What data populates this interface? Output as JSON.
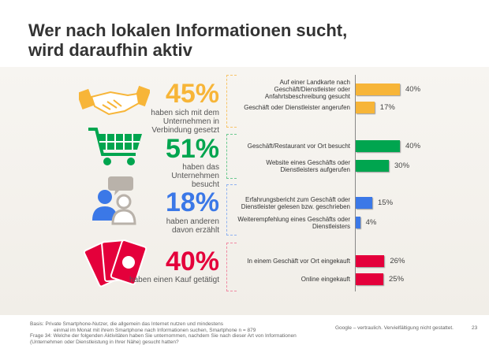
{
  "title_line1": "Wer nach lokalen Informationen sucht,",
  "title_line2": "wird daraufhin aktiv",
  "groups": [
    {
      "pct": "45%",
      "text": "haben sich mit dem Unternehmen in Verbindung gesetzt",
      "color": "#f7b538",
      "icon": "handshake-icon"
    },
    {
      "pct": "51%",
      "text": "haben das Unternehmen besucht",
      "color": "#00a54f",
      "icon": "shopping-cart-icon"
    },
    {
      "pct": "18%",
      "text": "haben anderen davon erzählt",
      "color": "#3b78e7",
      "icon": "people-speech-icon"
    },
    {
      "pct": "40%",
      "text": "haben einen Kauf getätigt",
      "color": "#e4003b",
      "icon": "money-icon"
    }
  ],
  "chart_data": {
    "type": "bar",
    "orientation": "horizontal",
    "categories": [
      "Auf einer Landkarte nach Geschäft/Dienstleister oder Anfahrtsbeschreibung gesucht",
      "Geschäft oder Dienstleister angerufen",
      "Geschäft/Restaurant vor Ort besucht",
      "Website eines Geschäfts oder Dienstleisters aufgerufen",
      "Erfahrungsbericht zum Geschäft oder Dienstleister gelesen bzw. geschrieben",
      "Weiterempfehlung eines Geschäfts oder Dienstleisters",
      "In einem Geschäft vor Ort eingekauft",
      "Online eingekauft"
    ],
    "values": [
      40,
      17,
      40,
      30,
      15,
      4,
      26,
      25
    ],
    "labels": [
      "40%",
      "17%",
      "40%",
      "30%",
      "15%",
      "4%",
      "26%",
      "25%"
    ],
    "colors": [
      "#f7b538",
      "#f7b538",
      "#00a54f",
      "#00a54f",
      "#3b78e7",
      "#3b78e7",
      "#e4003b",
      "#e4003b"
    ],
    "unit": "%"
  },
  "footer": {
    "basis1": "Basis: Private Smartphone-Nutzer, die allgemein das Internet nutzen und mindestens",
    "basis2": "einmal im Monat mit ihrem Smartphone nach Informationen suchen, Smartphone n = 879",
    "frage1": "Frage 34: Welche der folgenden Aktivitäten haben Sie unternommen, nachdem Sie nach dieser Art von Informationen",
    "frage2": "(Unternehmen oder Dienstleistung in Ihrer Nähe) gesucht hatten?",
    "confidential": "Google – vertraulich. Vervielfältigung nicht gestattet.",
    "page": "23"
  }
}
